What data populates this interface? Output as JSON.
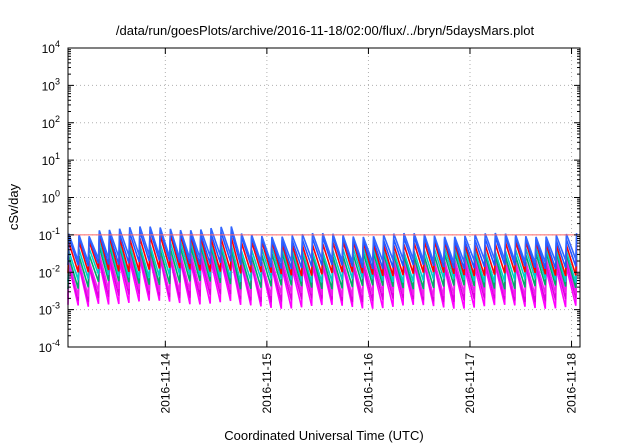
{
  "chart_data": {
    "type": "line",
    "title": "/data/run/goesPlots/archive/2016-11-18/02:00/flux/../bryn/5daysMars.plot",
    "xlabel": "Coordinated Universal Time (UTC)",
    "ylabel": "cSv/day",
    "x_range": [
      "2016-11-13T01:00",
      "2016-11-18T02:00"
    ],
    "x_ticks": [
      "2016-11-14",
      "2016-11-15",
      "2016-11-16",
      "2016-11-17",
      "2016-11-18"
    ],
    "y_scale": "log",
    "ylim": [
      0.0001,
      10000
    ],
    "y_ticks": [
      {
        "base": "10",
        "exp": "-4",
        "value": 0.0001
      },
      {
        "base": "10",
        "exp": "-3",
        "value": 0.001
      },
      {
        "base": "10",
        "exp": "-2",
        "value": 0.01
      },
      {
        "base": "10",
        "exp": "-1",
        "value": 0.1
      },
      {
        "base": "10",
        "exp": "0",
        "value": 1
      },
      {
        "base": "10",
        "exp": "1",
        "value": 10
      },
      {
        "base": "10",
        "exp": "2",
        "value": 100
      },
      {
        "base": "10",
        "exp": "3",
        "value": 1000
      },
      {
        "base": "10",
        "exp": "4",
        "value": 10000
      }
    ],
    "grid": true,
    "reference_line": {
      "value": 0.1,
      "color": "#ff6666"
    },
    "sawtooth": {
      "cycles_per_day": 10,
      "peak_day": 0.95,
      "peak_day_bump": 1.5,
      "decay_days": 0.9
    },
    "series": [
      {
        "color": "#ff00ff",
        "peak": 0.014,
        "trough": 0.0012
      },
      {
        "color": "#dd00dd",
        "peak": 0.018,
        "trough": 0.0018
      },
      {
        "color": "#ee22ee",
        "peak": 0.022,
        "trough": 0.0025
      },
      {
        "color": "#00aa66",
        "peak": 0.03,
        "trough": 0.004
      },
      {
        "color": "#00cccc",
        "peak": 0.04,
        "trough": 0.006
      },
      {
        "color": "#ff0000",
        "peak": 0.06,
        "trough": 0.009
      },
      {
        "color": "#2255ff",
        "peak": 0.08,
        "trough": 0.014
      },
      {
        "color": "#3366ff",
        "peak": 0.1,
        "trough": 0.02
      }
    ]
  }
}
